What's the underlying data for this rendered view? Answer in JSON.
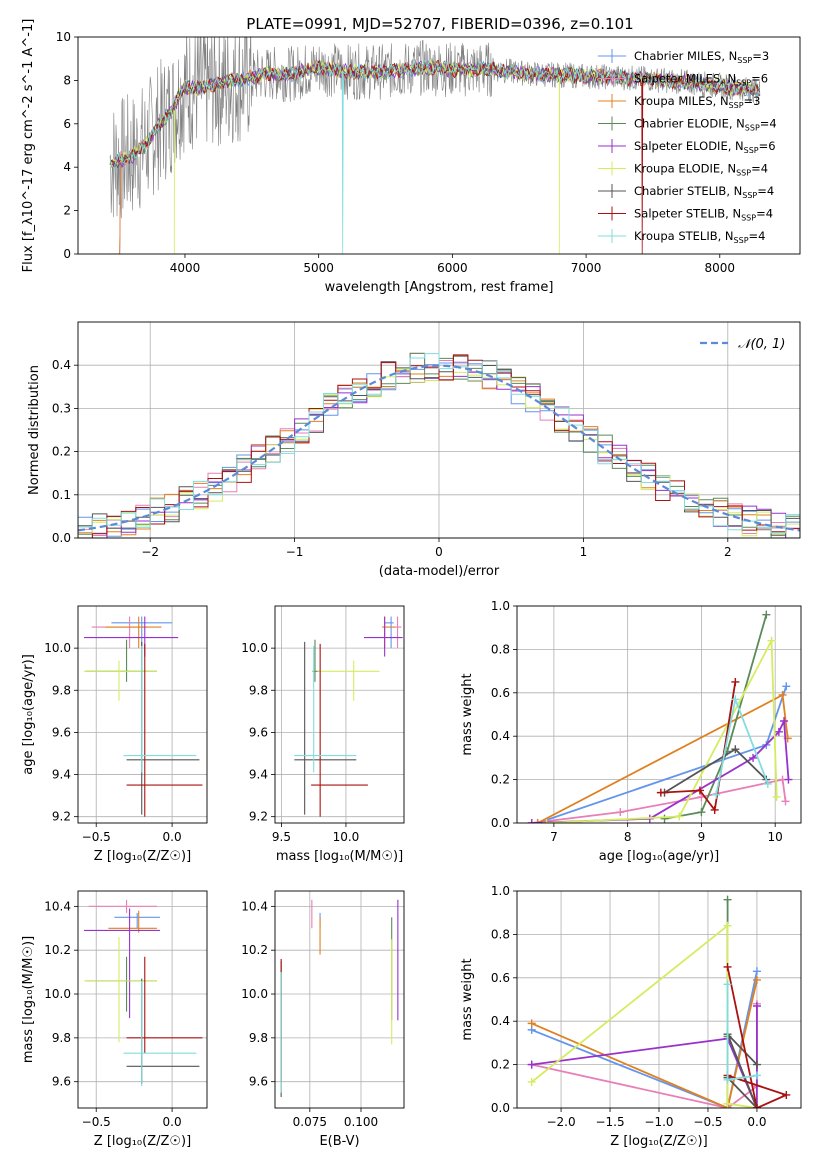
{
  "figure": {
    "title": "PLATE=0991, MJD=52707, FIBERID=0396, z=0.101",
    "colors": {
      "Chabrier MILES": "#6495ed",
      "Salpeter MILES": "#e87fb6",
      "Kroupa MILES": "#e08020",
      "Chabrier ELODIE": "#5a8a5a",
      "Salpeter ELODIE": "#9932cc",
      "Kroupa ELODIE": "#d4ed60",
      "Chabrier STELIB": "#555555",
      "Salpeter STELIB": "#aa1111",
      "Kroupa STELIB": "#80dede",
      "data": "#808080",
      "gauss": "#5b8bd6"
    }
  },
  "chart_data": [
    {
      "id": "spectrum",
      "type": "line",
      "title": "PLATE=0991, MJD=52707, FIBERID=0396, z=0.101",
      "xlabel": "wavelength [Angstrom, rest frame]",
      "ylabel": "Flux [f_λ10^-17 erg cm^-2 s^-1 A^-1]",
      "xlim": [
        3200,
        8600
      ],
      "ylim": [
        0,
        10
      ],
      "xticks": [
        4000,
        5000,
        6000,
        7000,
        8000
      ],
      "yticks": [
        0,
        2,
        4,
        6,
        8,
        10
      ],
      "grid": false,
      "legend_loc": "right",
      "legend": [
        {
          "name": "Chabrier MILES",
          "text": "Chabrier MILES, N",
          "sub": "SSP",
          "tail": "=3"
        },
        {
          "name": "Salpeter MILES",
          "text": "Salpeter MILES, N",
          "sub": "SSP",
          "tail": "=6"
        },
        {
          "name": "Kroupa MILES",
          "text": "Kroupa MILES, N",
          "sub": "SSP",
          "tail": "=3"
        },
        {
          "name": "Chabrier ELODIE",
          "text": "Chabrier ELODIE, N",
          "sub": "SSP",
          "tail": "=4"
        },
        {
          "name": "Salpeter ELODIE",
          "text": "Salpeter ELODIE, N",
          "sub": "SSP",
          "tail": "=6"
        },
        {
          "name": "Kroupa ELODIE",
          "text": "Kroupa ELODIE, N",
          "sub": "SSP",
          "tail": "=4"
        },
        {
          "name": "Chabrier STELIB",
          "text": "Chabrier STELIB, N",
          "sub": "SSP",
          "tail": "=4"
        },
        {
          "name": "Salpeter STELIB",
          "text": "Salpeter STELIB, N",
          "sub": "SSP",
          "tail": "=4"
        },
        {
          "name": "Kroupa STELIB",
          "text": "Kroupa STELIB, N",
          "sub": "SSP",
          "tail": "=4"
        }
      ],
      "continuum": {
        "x": [
          3450,
          3600,
          3700,
          3800,
          3900,
          3950,
          4000,
          4100,
          4200,
          4400,
          4600,
          4800,
          5000,
          5200,
          5500,
          5800,
          6000,
          6300,
          6600,
          7000,
          7400,
          7800,
          8200,
          8300
        ],
        "y": [
          4.2,
          4.5,
          5.0,
          5.9,
          6.6,
          7.2,
          7.7,
          7.6,
          7.8,
          8.0,
          8.3,
          8.3,
          8.6,
          8.4,
          8.4,
          8.6,
          8.5,
          8.5,
          8.3,
          8.2,
          8.1,
          7.9,
          7.6,
          7.5
        ]
      },
      "data_series": "observed spectrum (grey, noisy)",
      "dropouts": [
        {
          "model": "Kroupa ELODIE",
          "x": 3920
        },
        {
          "model": "Kroupa STELIB",
          "x": 5180
        },
        {
          "model": "Kroupa ELODIE",
          "x": 6800
        },
        {
          "model": "Salpeter STELIB",
          "x": 7420
        }
      ]
    },
    {
      "id": "residuals",
      "type": "histogram",
      "xlabel": "(data-model)/error",
      "ylabel": "Normed distribution",
      "xlim": [
        -2.5,
        2.5
      ],
      "ylim": [
        0,
        0.5
      ],
      "xticks": [
        -2,
        -1,
        0,
        1,
        2
      ],
      "xtick_labels": [
        "−2",
        "−1",
        "0",
        "1",
        "2"
      ],
      "yticks": [
        0.0,
        0.1,
        0.2,
        0.3,
        0.4
      ],
      "grid": true,
      "legend_loc": "top-right",
      "legend": [
        {
          "name": "gauss",
          "text": "𝒩(0, 1)"
        }
      ],
      "bin_width": 0.1
    },
    {
      "id": "age_vs_Z",
      "type": "errorbar",
      "xlabel": "Z [log₁₀(Z/Z☉)]",
      "ylabel": "age  [log₁₀(age/yr)]",
      "xlim": [
        -0.62,
        0.23
      ],
      "ylim": [
        9.17,
        10.2
      ],
      "xticks": [
        -0.5,
        0.0
      ],
      "xtick_labels": [
        "−0.5",
        "0.0"
      ],
      "yticks": [
        9.2,
        9.4,
        9.6,
        9.8,
        10.0
      ],
      "grid": true,
      "points": [
        {
          "model": "Chabrier MILES",
          "x": -0.2,
          "xerr": [
            0.2,
            0.2
          ],
          "y": 10.12,
          "yerr": [
            0.12,
            0.03
          ]
        },
        {
          "model": "Salpeter MILES",
          "x": -0.28,
          "xerr": [
            0.25,
            0.12
          ],
          "y": 10.1,
          "yerr": [
            0.1,
            0.05
          ]
        },
        {
          "model": "Kroupa MILES",
          "x": -0.22,
          "xerr": [
            0.22,
            0.15
          ],
          "y": 10.1,
          "yerr": [
            0.1,
            0.05
          ]
        },
        {
          "model": "Chabrier ELODIE",
          "x": -0.3,
          "xerr": [
            0.27,
            0.2
          ],
          "y": 9.89,
          "yerr": [
            0.05,
            0.15
          ]
        },
        {
          "model": "Salpeter ELODIE",
          "x": -0.18,
          "xerr": [
            0.4,
            0.22
          ],
          "y": 10.05,
          "yerr": [
            0.09,
            0.1
          ]
        },
        {
          "model": "Kroupa ELODIE",
          "x": -0.35,
          "xerr": [
            0.23,
            0.25
          ],
          "y": 9.89,
          "yerr": [
            0.14,
            0.05
          ]
        },
        {
          "model": "Chabrier STELIB",
          "x": -0.2,
          "xerr": [
            0.1,
            0.38
          ],
          "y": 9.47,
          "yerr": [
            0.26,
            0.56
          ]
        },
        {
          "model": "Salpeter STELIB",
          "x": -0.18,
          "xerr": [
            0.12,
            0.38
          ],
          "y": 9.35,
          "yerr": [
            0.15,
            0.67
          ]
        },
        {
          "model": "Kroupa STELIB",
          "x": -0.2,
          "xerr": [
            0.12,
            0.36
          ],
          "y": 9.49,
          "yerr": [
            0.08,
            0.52
          ]
        }
      ]
    },
    {
      "id": "age_vs_mass",
      "type": "errorbar",
      "xlabel": "mass [log₁₀(M/M☉)]",
      "ylabel": "",
      "xlim": [
        9.45,
        10.45
      ],
      "ylim": [
        9.17,
        10.2
      ],
      "xticks": [
        9.5,
        10.0
      ],
      "xtick_labels": [
        "9.5",
        "10.0"
      ],
      "yticks": [
        9.2,
        9.4,
        9.6,
        9.8,
        10.0
      ],
      "grid": true,
      "points": [
        {
          "model": "Chabrier MILES",
          "x": 10.35,
          "xerr": [
            0.05,
            0.02
          ],
          "y": 10.12,
          "yerr": [
            0.12,
            0.03
          ]
        },
        {
          "model": "Salpeter MILES",
          "x": 10.4,
          "xerr": [
            0.03,
            0.03
          ],
          "y": 10.1,
          "yerr": [
            0.1,
            0.05
          ]
        },
        {
          "model": "Kroupa MILES",
          "x": 10.3,
          "xerr": [
            0.02,
            0.08
          ],
          "y": 10.1,
          "yerr": [
            0.1,
            0.05
          ]
        },
        {
          "model": "Chabrier ELODIE",
          "x": 9.76,
          "xerr": [
            0.02,
            0.04
          ],
          "y": 9.89,
          "yerr": [
            0.05,
            0.15
          ]
        },
        {
          "model": "Salpeter ELODIE",
          "x": 10.3,
          "xerr": [
            0.16,
            0.14
          ],
          "y": 10.05,
          "yerr": [
            0.09,
            0.1
          ]
        },
        {
          "model": "Kroupa ELODIE",
          "x": 10.06,
          "xerr": [
            0.28,
            0.2
          ],
          "y": 9.89,
          "yerr": [
            0.14,
            0.05
          ]
        },
        {
          "model": "Chabrier STELIB",
          "x": 9.68,
          "xerr": [
            0.08,
            0.4
          ],
          "y": 9.47,
          "yerr": [
            0.26,
            0.56
          ]
        },
        {
          "model": "Salpeter STELIB",
          "x": 9.8,
          "xerr": [
            0.07,
            0.37
          ],
          "y": 9.35,
          "yerr": [
            0.15,
            0.67
          ]
        },
        {
          "model": "Kroupa STELIB",
          "x": 9.75,
          "xerr": [
            0.15,
            0.33
          ],
          "y": 9.49,
          "yerr": [
            0.08,
            0.52
          ]
        }
      ]
    },
    {
      "id": "weight_vs_age",
      "type": "line",
      "xlabel": "age  [log₁₀(age/yr)]",
      "ylabel": "mass weight",
      "xlim": [
        6.5,
        10.35
      ],
      "ylim": [
        0,
        1
      ],
      "xticks": [
        7,
        8,
        9,
        10
      ],
      "yticks": [
        0.0,
        0.2,
        0.4,
        0.6,
        0.8,
        1.0
      ],
      "grid": true,
      "series": [
        {
          "model": "Chabrier MILES",
          "x": [
            6.78,
            9.88,
            10.15
          ],
          "y": [
            0.0,
            0.36,
            0.63
          ]
        },
        {
          "model": "Salpeter MILES",
          "x": [
            6.7,
            7.9,
            9.0,
            10.1,
            10.14
          ],
          "y": [
            0.0,
            0.05,
            0.12,
            0.2,
            0.1
          ]
        },
        {
          "model": "Kroupa MILES",
          "x": [
            6.78,
            10.1,
            10.17
          ],
          "y": [
            0.0,
            0.59,
            0.39
          ]
        },
        {
          "model": "Chabrier ELODIE",
          "x": [
            8.5,
            9.0,
            9.35,
            9.88
          ],
          "y": [
            0.02,
            0.05,
            0.33,
            0.96
          ]
        },
        {
          "model": "Salpeter ELODIE",
          "x": [
            6.7,
            8.3,
            9.7,
            10.05,
            10.12,
            10.18
          ],
          "y": [
            0.0,
            0.02,
            0.3,
            0.42,
            0.47,
            0.2
          ]
        },
        {
          "model": "Kroupa ELODIE",
          "x": [
            6.9,
            8.7,
            9.95,
            10.02
          ],
          "y": [
            0.0,
            0.03,
            0.84,
            0.12
          ]
        },
        {
          "model": "Chabrier STELIB",
          "x": [
            8.5,
            9.46,
            9.88
          ],
          "y": [
            0.14,
            0.34,
            0.2
          ]
        },
        {
          "model": "Salpeter STELIB",
          "x": [
            8.45,
            8.98,
            9.18,
            9.46
          ],
          "y": [
            0.14,
            0.15,
            0.06,
            0.65
          ]
        },
        {
          "model": "Kroupa STELIB",
          "x": [
            9.2,
            9.46,
            9.9
          ],
          "y": [
            0.13,
            0.57,
            0.18
          ]
        }
      ]
    },
    {
      "id": "mass_vs_Z",
      "type": "errorbar",
      "xlabel": "Z [log₁₀(Z/Z☉)]",
      "ylabel": "mass [log₁₀(M/M☉)]",
      "xlim": [
        -0.62,
        0.23
      ],
      "ylim": [
        9.48,
        10.47
      ],
      "xticks": [
        -0.5,
        0.0
      ],
      "xtick_labels": [
        "−0.5",
        "0.0"
      ],
      "yticks": [
        9.6,
        9.8,
        10.0,
        10.2,
        10.4
      ],
      "grid": true,
      "points": [
        {
          "model": "Chabrier MILES",
          "x": -0.23,
          "xerr": [
            0.15,
            0.15
          ],
          "y": 10.35,
          "yerr": [
            0.05,
            0.02
          ]
        },
        {
          "model": "Salpeter MILES",
          "x": -0.3,
          "xerr": [
            0.25,
            0.2
          ],
          "y": 10.4,
          "yerr": [
            0.03,
            0.03
          ]
        },
        {
          "model": "Kroupa MILES",
          "x": -0.22,
          "xerr": [
            0.2,
            0.12
          ],
          "y": 10.3,
          "yerr": [
            0.02,
            0.08
          ]
        },
        {
          "model": "Chabrier ELODIE",
          "x": -0.3,
          "xerr": [
            0.27,
            0.2
          ],
          "y": 10.06,
          "yerr": [
            0.14,
            0.11
          ]
        },
        {
          "model": "Salpeter ELODIE",
          "x": -0.28,
          "xerr": [
            0.3,
            0.2
          ],
          "y": 10.29,
          "yerr": [
            0.4,
            0.1
          ]
        },
        {
          "model": "Kroupa ELODIE",
          "x": -0.35,
          "xerr": [
            0.23,
            0.25
          ],
          "y": 10.06,
          "yerr": [
            0.28,
            0.2
          ]
        },
        {
          "model": "Chabrier STELIB",
          "x": -0.2,
          "xerr": [
            0.1,
            0.38
          ],
          "y": 9.67,
          "yerr": [
            0.08,
            0.4
          ]
        },
        {
          "model": "Salpeter STELIB",
          "x": -0.18,
          "xerr": [
            0.12,
            0.38
          ],
          "y": 9.8,
          "yerr": [
            0.07,
            0.37
          ]
        },
        {
          "model": "Kroupa STELIB",
          "x": -0.2,
          "xerr": [
            0.12,
            0.36
          ],
          "y": 9.73,
          "yerr": [
            0.15,
            0.33
          ]
        }
      ]
    },
    {
      "id": "mass_vs_ebv",
      "type": "errorbar",
      "xlabel": "E(B-V)",
      "ylabel": "",
      "xlim": [
        0.058,
        0.121
      ],
      "ylim": [
        9.48,
        10.47
      ],
      "xticks": [
        0.075,
        0.1
      ],
      "xtick_labels": [
        "0.075",
        "0.100"
      ],
      "yticks": [
        9.6,
        9.8,
        10.0,
        10.2,
        10.4
      ],
      "grid": true,
      "points": [
        {
          "model": "Chabrier MILES",
          "x": 0.08,
          "y": 10.35,
          "yerr": [
            0.05,
            0.02
          ]
        },
        {
          "model": "Salpeter MILES",
          "x": 0.076,
          "y": 10.4,
          "yerr": [
            0.1,
            0.03
          ]
        },
        {
          "model": "Kroupa MILES",
          "x": 0.08,
          "y": 10.3,
          "yerr": [
            0.12,
            0.05
          ]
        },
        {
          "model": "Chabrier ELODIE",
          "x": 0.115,
          "y": 10.1,
          "yerr": [
            0.22,
            0.25
          ]
        },
        {
          "model": "Salpeter ELODIE",
          "x": 0.118,
          "y": 10.15,
          "yerr": [
            0.27,
            0.28
          ]
        },
        {
          "model": "Kroupa ELODIE",
          "x": 0.115,
          "y": 10.05,
          "yerr": [
            0.28,
            0.2
          ]
        },
        {
          "model": "Chabrier STELIB",
          "x": 0.061,
          "y": 9.8,
          "yerr": [
            0.27,
            0.35
          ]
        },
        {
          "model": "Salpeter STELIB",
          "x": 0.061,
          "y": 9.9,
          "yerr": [
            0.3,
            0.26
          ]
        },
        {
          "model": "Kroupa STELIB",
          "x": 0.061,
          "y": 9.8,
          "yerr": [
            0.25,
            0.3
          ]
        }
      ]
    },
    {
      "id": "weight_vs_Z",
      "type": "line",
      "xlabel": "Z [log₁₀(Z/Z☉)]",
      "ylabel": "mass weight",
      "xlim": [
        -2.45,
        0.45
      ],
      "ylim": [
        0,
        1
      ],
      "xticks": [
        -2.0,
        -1.5,
        -1.0,
        -0.5,
        0.0
      ],
      "xtick_labels": [
        "−2.0",
        "−1.5",
        "−1.0",
        "−0.5",
        "0.0"
      ],
      "yticks": [
        0.0,
        0.2,
        0.4,
        0.6,
        0.8,
        1.0
      ],
      "grid": true,
      "series": [
        {
          "model": "Chabrier MILES",
          "x": [
            -2.3,
            -0.3,
            0.0
          ],
          "y": [
            0.36,
            0.0,
            0.63
          ]
        },
        {
          "model": "Salpeter MILES",
          "x": [
            -2.3,
            -0.3,
            0.0,
            0.0
          ],
          "y": [
            0.2,
            0.0,
            0.1,
            0.48
          ]
        },
        {
          "model": "Kroupa MILES",
          "x": [
            -2.3,
            -0.3,
            0.0
          ],
          "y": [
            0.39,
            0.0,
            0.59
          ]
        },
        {
          "model": "Chabrier ELODIE",
          "x": [
            -0.3,
            -0.3,
            -0.3,
            0.0
          ],
          "y": [
            0.02,
            0.96,
            0.33,
            0.0
          ]
        },
        {
          "model": "Salpeter ELODIE",
          "x": [
            -2.3,
            -0.3,
            0.0,
            0.0
          ],
          "y": [
            0.2,
            0.32,
            0.0,
            0.47
          ]
        },
        {
          "model": "Kroupa ELODIE",
          "x": [
            -2.3,
            -0.3,
            -0.3,
            0.0
          ],
          "y": [
            0.12,
            0.84,
            0.02,
            0.0
          ]
        },
        {
          "model": "Chabrier STELIB",
          "x": [
            -0.3,
            0.0,
            -0.3,
            0.0
          ],
          "y": [
            0.14,
            0.0,
            0.34,
            0.2
          ]
        },
        {
          "model": "Salpeter STELIB",
          "x": [
            -0.3,
            0.0,
            0.3,
            -0.3
          ],
          "y": [
            0.65,
            0.0,
            0.06,
            0.15
          ]
        },
        {
          "model": "Kroupa STELIB",
          "x": [
            -0.3,
            -0.3,
            0.0
          ],
          "y": [
            0.57,
            0.13,
            0.15
          ]
        }
      ]
    }
  ]
}
